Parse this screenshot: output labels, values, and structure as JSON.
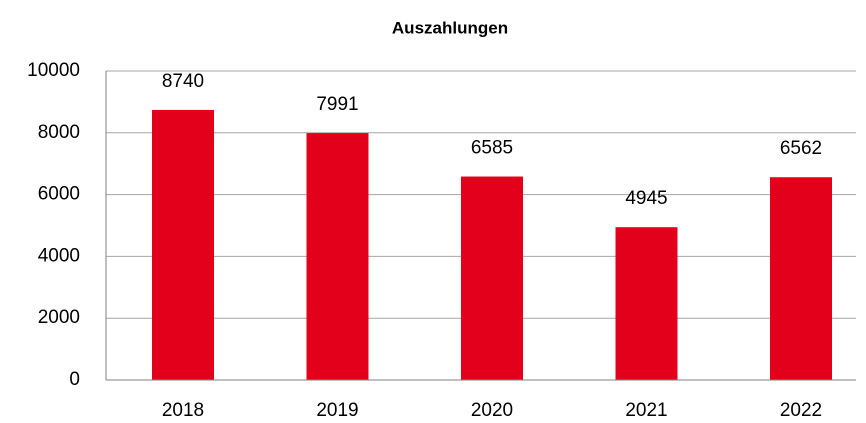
{
  "chart_data": {
    "type": "bar",
    "title": "Auszahlungen",
    "categories": [
      "2018",
      "2019",
      "2020",
      "2021",
      "2022"
    ],
    "values": [
      8740,
      7991,
      6585,
      4945,
      6562
    ],
    "color": "#e2001a",
    "ylim": [
      0,
      10000
    ],
    "yticks": [
      0,
      2000,
      4000,
      6000,
      8000,
      10000
    ],
    "grid": true
  }
}
